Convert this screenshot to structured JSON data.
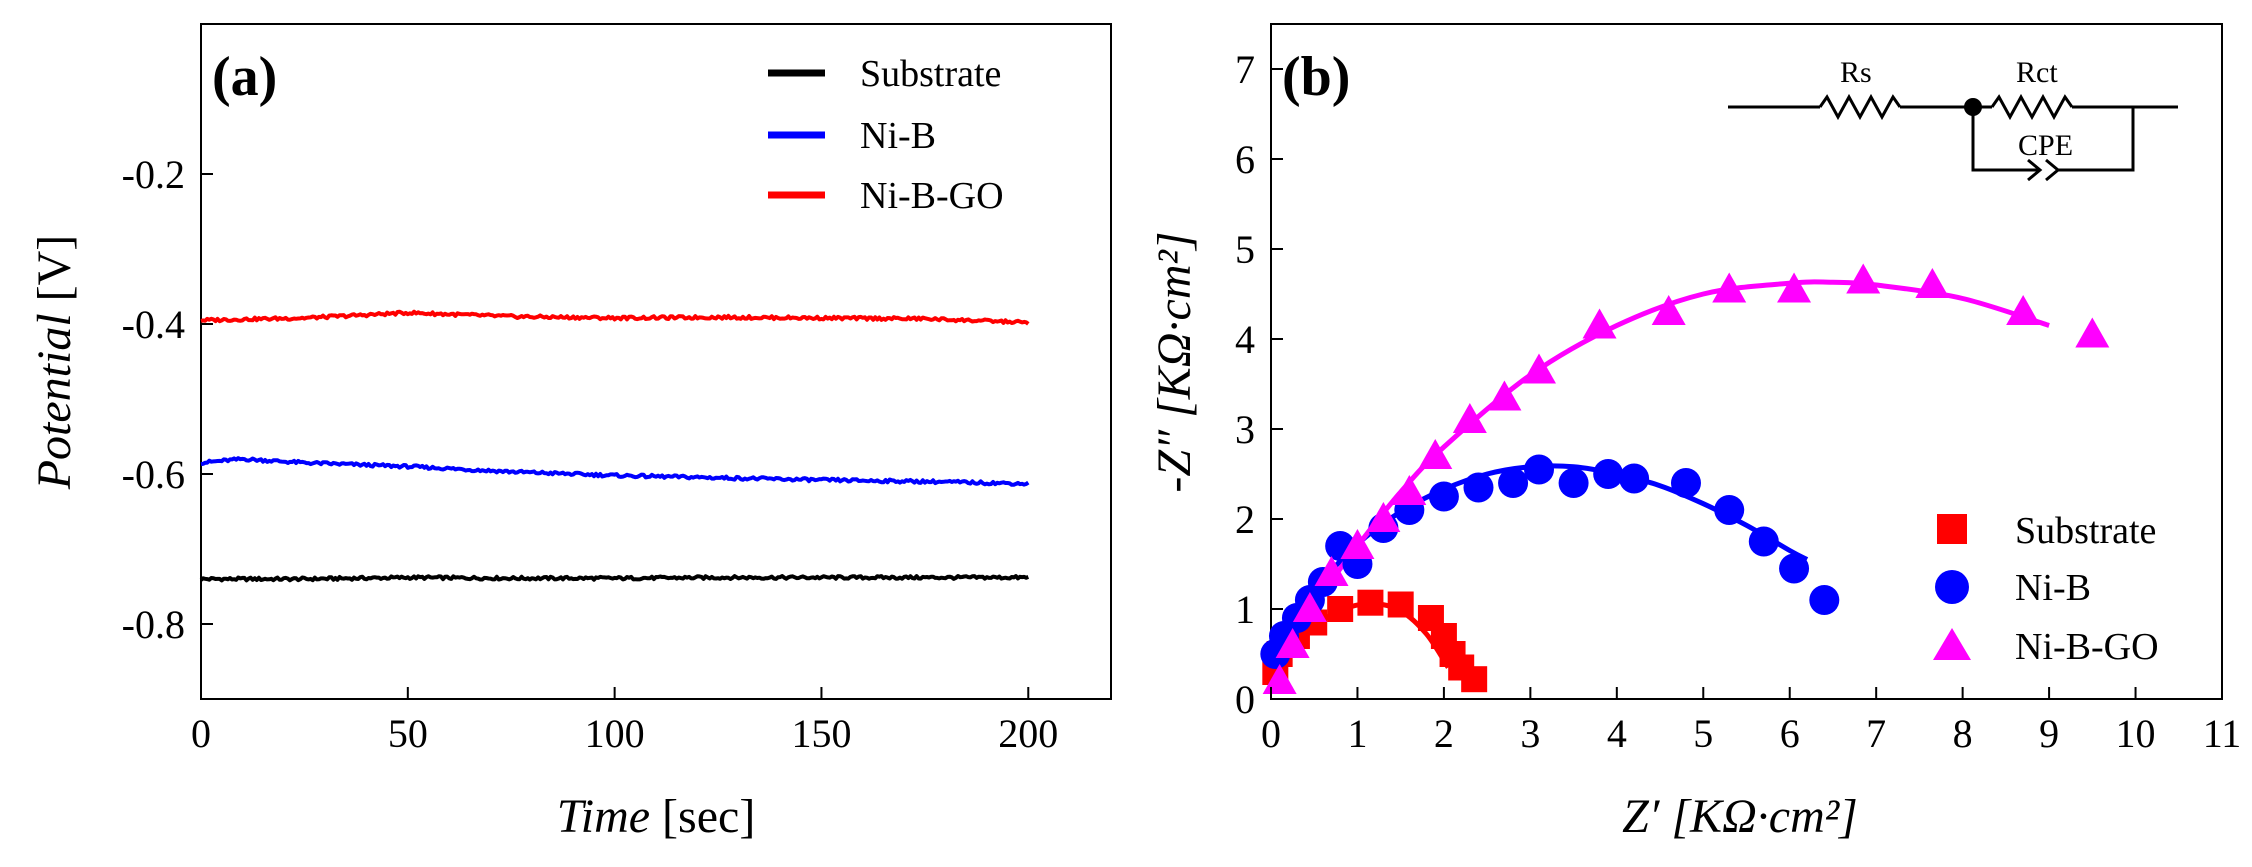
{
  "chart_data": [
    {
      "panel": "(a)",
      "type": "line",
      "xlabel_italic": "Time",
      "xlabel_unit": "[sec]",
      "ylabel_italic": "Potential",
      "ylabel_unit": "[V]",
      "xlim": [
        0,
        220
      ],
      "ylim": [
        -0.9,
        0.0
      ],
      "xticks": [
        0,
        50,
        100,
        150,
        200
      ],
      "xtick_labels": [
        "0",
        "50",
        "100",
        "150",
        "200"
      ],
      "yticks": [
        -0.2,
        -0.4,
        -0.6,
        -0.8
      ],
      "ytick_labels": [
        "-0.2",
        "-0.4",
        "-0.6",
        "-0.8"
      ],
      "legend_position": "top-right",
      "series": [
        {
          "name": "Substrate",
          "color": "#000000",
          "x": [
            0,
            25,
            50,
            75,
            100,
            125,
            150,
            175,
            200
          ],
          "y": [
            -0.74,
            -0.74,
            -0.738,
            -0.739,
            -0.739,
            -0.738,
            -0.738,
            -0.738,
            -0.738
          ]
        },
        {
          "name": "Ni-B",
          "color": "#0000ff",
          "x": [
            0,
            10,
            25,
            50,
            75,
            100,
            125,
            150,
            175,
            200
          ],
          "y": [
            -0.585,
            -0.58,
            -0.585,
            -0.59,
            -0.597,
            -0.602,
            -0.605,
            -0.608,
            -0.61,
            -0.613
          ]
        },
        {
          "name": "Ni-B-GO",
          "color": "#ff0000",
          "x": [
            0,
            25,
            50,
            75,
            100,
            125,
            150,
            175,
            200
          ],
          "y": [
            -0.395,
            -0.392,
            -0.385,
            -0.39,
            -0.392,
            -0.391,
            -0.392,
            -0.393,
            -0.398
          ]
        }
      ]
    },
    {
      "panel": "(b)",
      "type": "scatter",
      "xlabel_italic": "Z′",
      "xlabel_unit": "[KΩ·cm²]",
      "ylabel_italic": "-Z″",
      "ylabel_unit": "[KΩ·cm²]",
      "xlim": [
        0,
        11
      ],
      "ylim": [
        0,
        7.5
      ],
      "xticks": [
        0,
        1,
        2,
        3,
        4,
        5,
        6,
        7,
        8,
        9,
        10,
        11
      ],
      "xtick_labels": [
        "0",
        "1",
        "2",
        "3",
        "4",
        "5",
        "6",
        "7",
        "8",
        "9",
        "10",
        "11"
      ],
      "yticks": [
        0,
        1,
        2,
        3,
        4,
        5,
        6,
        7
      ],
      "ytick_labels": [
        "0",
        "1",
        "2",
        "3",
        "4",
        "5",
        "6",
        "7"
      ],
      "legend_position": "bottom-right",
      "circuit": {
        "rs_label": "Rs",
        "rct_label": "Rct",
        "cpe_label": "CPE"
      },
      "series": [
        {
          "name": "Substrate",
          "color": "#ff0000",
          "marker": "square",
          "x": [
            0.05,
            0.1,
            0.2,
            0.3,
            0.5,
            0.8,
            1.15,
            1.5,
            1.85,
            2.0,
            2.1,
            2.2,
            2.35
          ],
          "y": [
            0.3,
            0.5,
            0.6,
            0.7,
            0.85,
            1.0,
            1.07,
            1.05,
            0.9,
            0.7,
            0.5,
            0.35,
            0.22
          ],
          "fit_x": [
            0.0,
            0.3,
            0.6,
            0.9,
            1.2,
            1.5,
            1.8,
            2.05
          ],
          "fit_y": [
            0.2,
            0.62,
            0.88,
            1.02,
            1.06,
            0.98,
            0.72,
            0.35
          ]
        },
        {
          "name": "Ni-B",
          "color": "#0000ff",
          "marker": "circle",
          "x": [
            0.05,
            0.15,
            0.3,
            0.45,
            0.6,
            0.8,
            1.0,
            1.3,
            1.6,
            2.0,
            2.4,
            2.8,
            3.1,
            3.5,
            3.9,
            4.2,
            4.8,
            5.3,
            5.7,
            6.05,
            6.4
          ],
          "y": [
            0.5,
            0.7,
            0.9,
            1.1,
            1.3,
            1.7,
            1.5,
            1.9,
            2.1,
            2.25,
            2.35,
            2.4,
            2.55,
            2.4,
            2.5,
            2.45,
            2.4,
            2.1,
            1.75,
            1.45,
            1.1
          ],
          "fit_x": [
            0.0,
            0.5,
            1.0,
            1.5,
            2.0,
            2.5,
            3.0,
            3.5,
            4.0,
            4.5,
            5.0,
            5.5,
            6.0,
            6.2
          ],
          "fit_y": [
            0.5,
            1.2,
            1.72,
            2.08,
            2.33,
            2.5,
            2.58,
            2.58,
            2.5,
            2.37,
            2.17,
            1.93,
            1.65,
            1.55
          ]
        },
        {
          "name": "Ni-B-GO",
          "color": "#ff00ff",
          "marker": "triangle",
          "x": [
            0.1,
            0.25,
            0.45,
            0.7,
            1.0,
            1.3,
            1.6,
            1.9,
            2.3,
            2.7,
            3.1,
            3.8,
            4.6,
            5.3,
            6.05,
            6.85,
            7.65,
            8.7,
            9.5
          ],
          "y": [
            0.2,
            0.6,
            1.0,
            1.4,
            1.7,
            2.0,
            2.3,
            2.7,
            3.1,
            3.35,
            3.65,
            4.15,
            4.3,
            4.55,
            4.55,
            4.65,
            4.6,
            4.3,
            4.05
          ],
          "fit_x": [
            0.0,
            0.5,
            1.0,
            1.5,
            2.0,
            3.0,
            4.0,
            5.0,
            6.0,
            6.5,
            7.0,
            8.0,
            9.0
          ],
          "fit_y": [
            0.3,
            1.05,
            1.7,
            2.3,
            2.8,
            3.6,
            4.15,
            4.5,
            4.62,
            4.63,
            4.6,
            4.45,
            4.15
          ]
        }
      ]
    }
  ]
}
